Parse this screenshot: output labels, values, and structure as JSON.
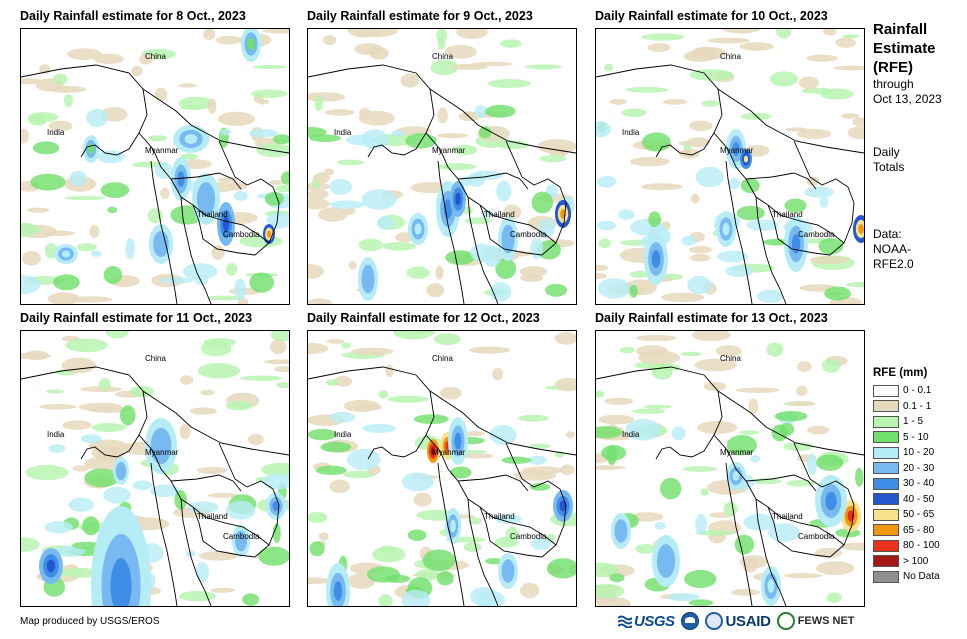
{
  "panels": [
    {
      "title": "Daily Rainfall estimate for 8 Oct., 2023"
    },
    {
      "title": "Daily Rainfall estimate for 9 Oct., 2023"
    },
    {
      "title": "Daily Rainfall estimate for 10 Oct., 2023"
    },
    {
      "title": "Daily Rainfall estimate for 11 Oct., 2023"
    },
    {
      "title": "Daily Rainfall estimate for 12 Oct., 2023"
    },
    {
      "title": "Daily Rainfall estimate for 13 Oct., 2023"
    }
  ],
  "map_labels": {
    "china": "China",
    "india": "India",
    "myanmar": "Myanmar",
    "thailand": "Thailand",
    "cambodia": "Cambodia"
  },
  "sidebar": {
    "title_line1": "Rainfall",
    "title_line2": "Estimate",
    "title_line3": "(RFE)",
    "through": "through",
    "date": "Oct 13, 2023",
    "daily": "Daily",
    "totals": "Totals",
    "data_label": "Data:",
    "data_source1": "NOAA-",
    "data_source2": "RFE2.0"
  },
  "legend": {
    "title": "RFE (mm)",
    "items": [
      {
        "label": "0 - 0.1",
        "color": "#ffffff"
      },
      {
        "label": "0.1 - 1",
        "color": "#e6d9bc"
      },
      {
        "label": "1 - 5",
        "color": "#b9f4b0"
      },
      {
        "label": "5 - 10",
        "color": "#6fe06a"
      },
      {
        "label": "10 - 20",
        "color": "#b6ecf6"
      },
      {
        "label": "20 - 30",
        "color": "#77b9f0"
      },
      {
        "label": "30 - 40",
        "color": "#3f8ee6"
      },
      {
        "label": "40 - 50",
        "color": "#2456d0"
      },
      {
        "label": "50 - 65",
        "color": "#f7e38a"
      },
      {
        "label": "65 - 80",
        "color": "#f3960f"
      },
      {
        "label": "80 - 100",
        "color": "#e8331a"
      },
      {
        "label": "> 100",
        "color": "#a51818"
      },
      {
        "label": "No Data",
        "color": "#8f8f8f"
      }
    ]
  },
  "credit": "Map produced by USGS/EROS",
  "logos": {
    "usgs": "USGS",
    "usaid": "USAID",
    "fews": "FEWS NET"
  }
}
